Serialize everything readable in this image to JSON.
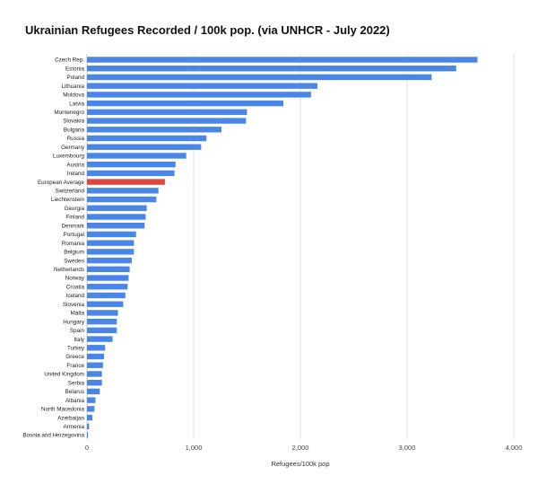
{
  "chart_data": {
    "type": "bar",
    "orientation": "horizontal",
    "title": "Ukrainian Refugees Recorded / 100k pop. (via UNHCR - July 2022)",
    "xlabel": "Refugees/100k pop",
    "ylabel": "",
    "xlim": [
      0,
      4000
    ],
    "xticks": [
      0,
      1000,
      2000,
      3000,
      4000
    ],
    "xtick_labels": [
      "0",
      "1,000",
      "2,000",
      "3,000",
      "4,000"
    ],
    "grid": "vertical",
    "categories": [
      "Czech Rep.",
      "Estonia",
      "Poland",
      "Lithuania",
      "Moldova",
      "Latvia",
      "Montenegro",
      "Slovakia",
      "Bulgaria",
      "Russia",
      "Germany",
      "Luxembourg",
      "Austria",
      "Ireland",
      "European Average",
      "Switzerland",
      "Liechtenstein",
      "Georgia",
      "Finland",
      "Denmark",
      "Portugal",
      "Romania",
      "Belgium",
      "Sweden",
      "Netherlands",
      "Norway",
      "Croatia",
      "Iceland",
      "Slovenia",
      "Malta",
      "Hungary",
      "Spain",
      "Italy",
      "Turkey",
      "Greece",
      "France",
      "United Kingdom",
      "Serbia",
      "Belarus",
      "Albania",
      "North Macedonia",
      "Azerbaijan",
      "Armenia",
      "Bosnia and Herzegovina"
    ],
    "values": [
      3660,
      3460,
      3230,
      2160,
      2100,
      1840,
      1500,
      1490,
      1260,
      1120,
      1070,
      930,
      830,
      820,
      730,
      670,
      650,
      560,
      550,
      540,
      460,
      440,
      440,
      420,
      400,
      390,
      380,
      360,
      340,
      290,
      280,
      280,
      240,
      170,
      160,
      150,
      140,
      140,
      120,
      80,
      70,
      50,
      20,
      10
    ],
    "colors": {
      "default": "#4a86e8",
      "highlight": "#e0463c",
      "grid": "#d9d9d9"
    },
    "highlight_category": "European Average"
  }
}
